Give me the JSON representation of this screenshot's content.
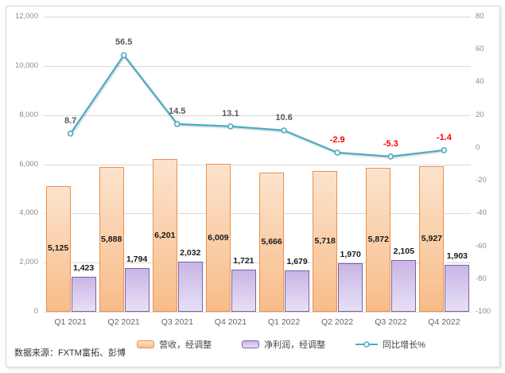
{
  "source_note": "数据来源：FXTM富拓、彭博",
  "colors": {
    "grid": "#d9d9d9",
    "axis_text": "#8c8c8c",
    "category_text": "#666666",
    "bar_label": "#1a1a1a",
    "frame_border": "#d4d4d4"
  },
  "chart_data": {
    "type": "bar",
    "subtype": "combo-bar-line",
    "categories": [
      "Q1 2021",
      "Q2 2021",
      "Q3 2021",
      "Q4 2021",
      "Q1 2022",
      "Q2 2022",
      "Q3 2022",
      "Q4 2022"
    ],
    "bar_series": [
      {
        "id": "revenue",
        "name": "营收，经调整",
        "values": [
          5125,
          5888,
          6201,
          6009,
          5666,
          5718,
          5872,
          5927
        ],
        "label_position": "inside-center",
        "border_color": "#e8914e",
        "fill_top": "#fce3cd",
        "fill_bottom": "#f8bc88"
      },
      {
        "id": "net_profit",
        "name": "净利润，经调整",
        "values": [
          1423,
          1794,
          2032,
          1721,
          1679,
          1970,
          2105,
          1903
        ],
        "label_position": "outside-end",
        "border_color": "#7d61a6",
        "fill_top": "#c9b5e5",
        "fill_bottom": "#e7e0f4"
      }
    ],
    "line_series": {
      "id": "yoy_growth",
      "name": "同比增长%",
      "values": [
        8.7,
        56.5,
        14.5,
        13.1,
        10.6,
        -2.9,
        -5.3,
        -1.4
      ],
      "color": "#4bacc6",
      "label_color_positive": "#595959",
      "label_color_negative": "#ff0000"
    },
    "left_axis": {
      "min": 0,
      "max": 12000,
      "tick_step": 2000,
      "tick_labels": [
        "0",
        "2,000",
        "4,000",
        "6,000",
        "8,000",
        "10,000",
        "12,000"
      ]
    },
    "right_axis": {
      "min": -100,
      "max": 80,
      "tick_step": 20,
      "tick_labels": [
        "-100",
        "-80",
        "-60",
        "-40",
        "-20",
        "0",
        "20",
        "40",
        "60",
        "80"
      ]
    },
    "gridlines": "horizontal",
    "legend_position": "bottom"
  }
}
